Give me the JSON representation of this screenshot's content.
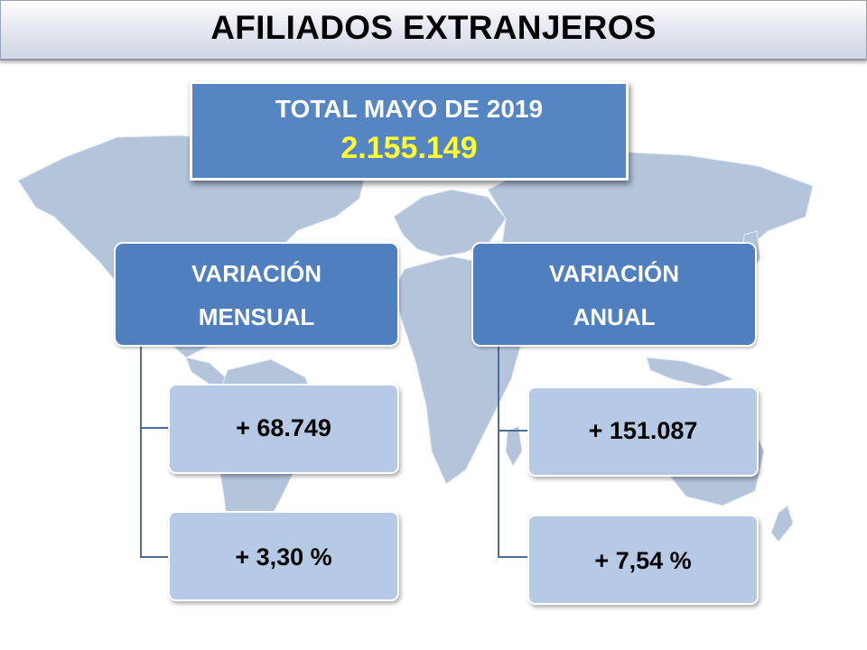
{
  "title": "AFILIADOS EXTRANJEROS",
  "total": {
    "label": "TOTAL MAYO DE 2019",
    "value": "2.155.149"
  },
  "mensual": {
    "line1": "VARIACIÓN",
    "line2": "MENSUAL",
    "absolute": "+ 68.749",
    "percent": "+ 3,30 %"
  },
  "anual": {
    "line1": "VARIACIÓN",
    "line2": "ANUAL",
    "absolute": "+ 151.087",
    "percent": "+ 7,54 %"
  },
  "colors": {
    "header_blue": "#4f7fbf",
    "value_box": "#b6cae6",
    "total_value": "#ffff33",
    "map": "#aebfd8"
  }
}
